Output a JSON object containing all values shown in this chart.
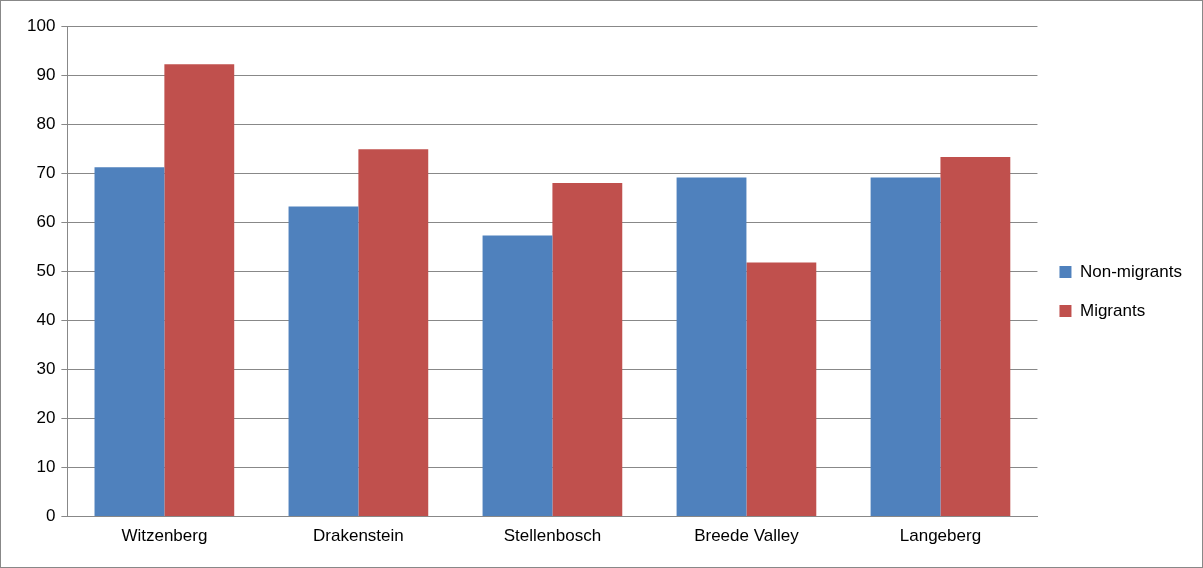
{
  "chart_data": {
    "type": "bar",
    "categories": [
      "Witzenberg",
      "Drakenstein",
      "Stellenbosch",
      "Breede Valley",
      "Langeberg"
    ],
    "series": [
      {
        "name": "Non-migrants",
        "color": "#4f81bd",
        "values": [
          71.2,
          63.2,
          57.3,
          69.1,
          69.1
        ]
      },
      {
        "name": "Migrants",
        "color": "#c0504d",
        "values": [
          92.2,
          74.9,
          68.0,
          51.8,
          73.3
        ]
      }
    ],
    "ylim": [
      0,
      100
    ],
    "yticks": [
      0,
      10,
      20,
      30,
      40,
      50,
      60,
      70,
      80,
      90,
      100
    ],
    "grid": "y",
    "legend": "right"
  }
}
